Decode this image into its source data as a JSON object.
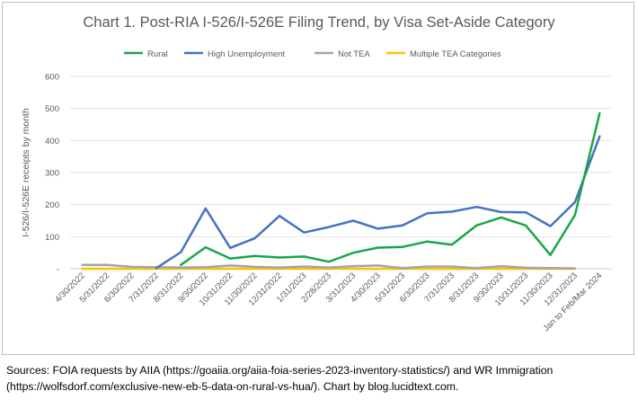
{
  "chart_data": {
    "type": "line",
    "title": "Chart 1. Post-RIA I-526/I-526E Filing Trend, by Visa Set-Aside Category",
    "ylabel": "I-526/I-526E receipts by month",
    "xlabel": "",
    "ylim": [
      0,
      600
    ],
    "yticks": [
      0,
      100,
      200,
      300,
      400,
      500,
      600
    ],
    "ytick_labels": [
      "-",
      "100",
      "200",
      "300",
      "400",
      "500",
      "600"
    ],
    "grid": "horizontal",
    "legend_position": "top",
    "categories": [
      "4/30/2022",
      "5/31/2022",
      "6/30/2022",
      "7/31/2022",
      "8/31/2022",
      "9/30/2022",
      "10/31/2022",
      "11/30/2022",
      "12/31/2022",
      "1/31/2023",
      "2/28/2023",
      "3/31/2023",
      "4/30/2023",
      "5/31/2023",
      "6/30/2023",
      "7/31/2023",
      "8/31/2023",
      "9/30/2023",
      "10/31/2023",
      "11/30/2023",
      "12/31/2023",
      "Jan to Feb/Mar 2024"
    ],
    "series": [
      {
        "name": "Rural",
        "color": "#1aa64a",
        "values": [
          null,
          null,
          null,
          null,
          12,
          67,
          32,
          40,
          35,
          38,
          22,
          50,
          66,
          68,
          85,
          75,
          135,
          160,
          135,
          43,
          168,
          485
        ]
      },
      {
        "name": "High Unemployment",
        "color": "#4472c4",
        "values": [
          null,
          null,
          null,
          2,
          52,
          188,
          65,
          95,
          165,
          113,
          130,
          150,
          125,
          135,
          173,
          178,
          193,
          177,
          176,
          133,
          208,
          413
        ]
      },
      {
        "name": "Not TEA",
        "color": "#a5a5a5",
        "values": [
          12,
          12,
          6,
          5,
          4,
          5,
          10,
          6,
          4,
          7,
          4,
          8,
          10,
          2,
          7,
          7,
          2,
          8,
          3,
          2,
          1,
          null
        ]
      },
      {
        "name": "Multiple TEA Categories",
        "color": "#ffc000",
        "values": [
          0,
          0,
          0,
          0,
          0,
          0,
          0,
          0,
          0,
          0,
          0,
          0,
          0,
          0,
          0,
          0,
          0,
          0,
          0,
          0,
          0,
          null
        ]
      }
    ]
  },
  "sources": {
    "line1": "Sources: FOIA requests by AIIA (https://goaiia.org/aiia-foia-series-2023-inventory-statistics/) and WR Immigration",
    "line2": "(https://wolfsdorf.com/exclusive-new-eb-5-data-on-rural-vs-hua/). Chart by blog.lucidtext.com."
  }
}
